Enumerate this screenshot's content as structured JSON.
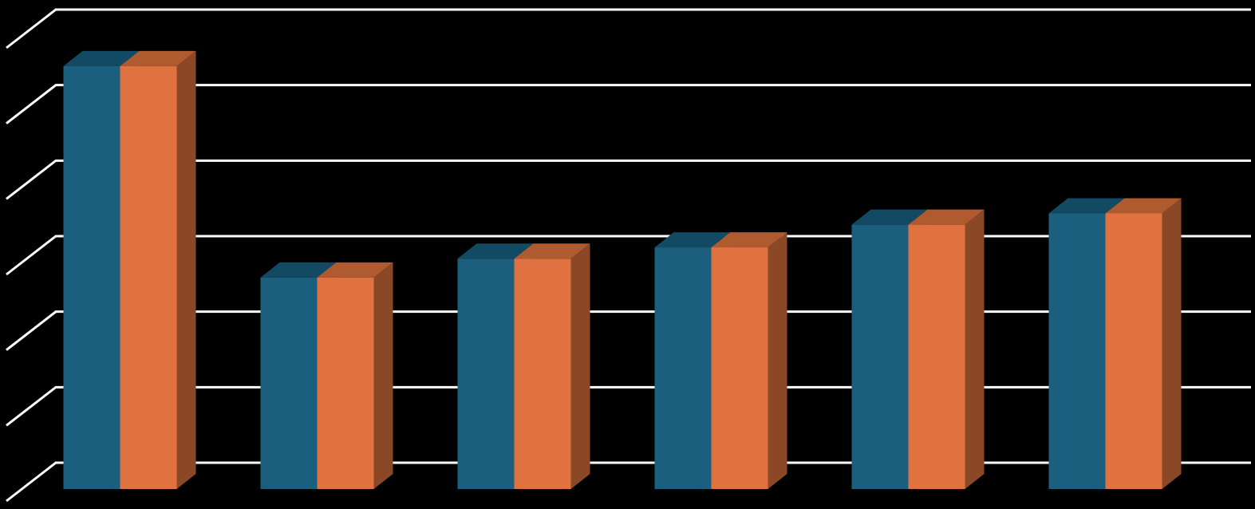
{
  "chart_data": {
    "type": "bar3d",
    "categories": [
      null,
      null,
      null,
      null,
      null,
      null
    ],
    "series": [
      {
        "color": "#1b5e7d",
        "top_color": "#134a63",
        "side_color": "#12425a",
        "values": [
          5.6,
          2.8,
          3.05,
          3.2,
          3.5,
          3.65
        ]
      },
      {
        "color": "#e07241",
        "top_color": "#b05a30",
        "side_color": "#8b4827",
        "values": [
          5.6,
          2.8,
          3.05,
          3.2,
          3.5,
          3.65
        ]
      }
    ],
    "ylim": [
      0,
      6
    ],
    "yticks": [
      0,
      1,
      2,
      3,
      4,
      5,
      6
    ],
    "grid": true,
    "grid_color": "#ffffff"
  }
}
